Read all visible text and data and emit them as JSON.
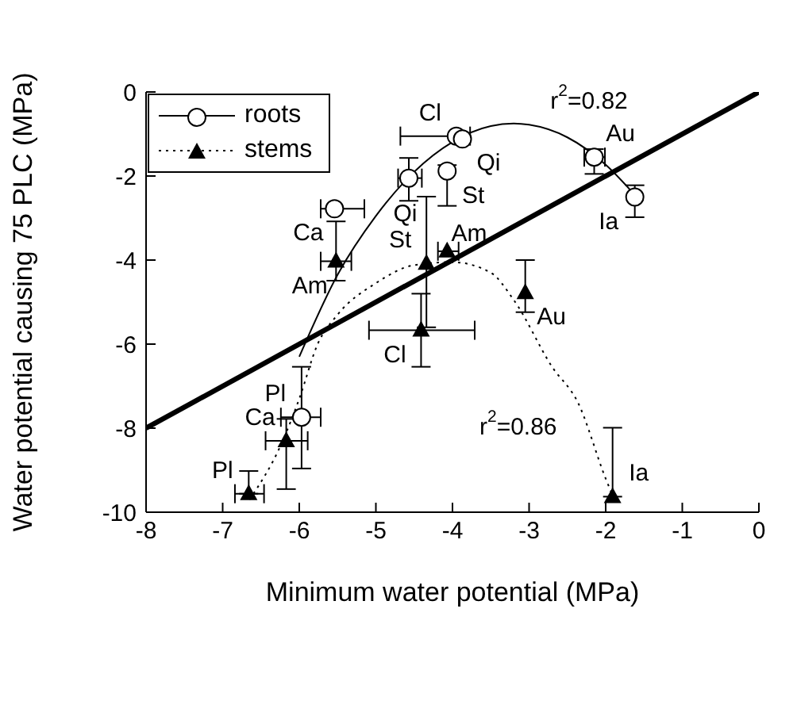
{
  "chart_data": {
    "type": "scatter",
    "xlabel": "Minimum water potential (MPa)",
    "ylabel": "Water potential causing 75 PLC (MPa)",
    "xlim": [
      -8,
      0
    ],
    "xticks": [
      -8,
      -7,
      -6,
      -5,
      -4,
      -3,
      -2,
      -1,
      0
    ],
    "ylim": [
      -10,
      0
    ],
    "yticks": [
      -10,
      -8,
      -6,
      -4,
      -2,
      0
    ],
    "grid": false,
    "legend": "top left",
    "series": [
      {
        "name": "roots",
        "color": "#000000",
        "marker": "circle",
        "line_style": "solid",
        "x": [
          -5.54,
          -4.57,
          -3.95,
          -3.87,
          -4.07,
          -2.15,
          -1.62,
          -5.97
        ],
        "values": [
          -2.78,
          -2.05,
          -1.05,
          -1.12,
          -1.88,
          -1.55,
          -2.5,
          -7.74
        ],
        "errors": [
          null,
          [
            -2.59,
            -1.57
          ],
          null,
          null,
          [
            -2.71,
            -1.74
          ],
          [
            -1.95,
            -1.36
          ],
          [
            -2.98,
            -2.22
          ],
          [
            -8.96,
            -6.54
          ]
        ],
        "xerrors": [
          [
            -5.72,
            -5.15
          ],
          [
            -4.71,
            -4.4
          ],
          [
            -4.68,
            -3.77
          ],
          null,
          null,
          [
            -2.28,
            -2.01
          ],
          null,
          [
            -6.24,
            -5.72
          ]
        ]
      },
      {
        "name": "stems",
        "color": "#000000",
        "marker": "triangle",
        "line_style": "dotted",
        "x": [
          -5.52,
          -4.34,
          -4.07,
          -3.05,
          -4.41,
          -6.17,
          -6.66,
          -1.91
        ],
        "values": [
          -4.03,
          -4.08,
          -3.79,
          -4.78,
          -5.67,
          -8.3,
          -9.56,
          -9.63
        ],
        "errors": [
          [
            -4.49,
            -3.08
          ],
          [
            -5.6,
            -2.49
          ],
          null,
          [
            -5.24,
            -4.0
          ],
          [
            -6.54,
            -4.8
          ],
          [
            -9.45,
            -7.78
          ],
          [
            -9.56,
            -9.02
          ],
          [
            -9.63,
            -7.99
          ]
        ],
        "xerrors": [
          [
            -5.72,
            -5.32
          ],
          null,
          [
            -4.19,
            -3.92
          ],
          null,
          [
            -5.09,
            -3.71
          ],
          [
            -6.44,
            -5.89
          ],
          [
            -6.84,
            -6.46
          ],
          null
        ]
      },
      {
        "type": "line",
        "color": "#000000",
        "line_style": "solid",
        "marker": "none",
        "x": [
          -6,
          -5.5,
          -5,
          -4.5,
          -4,
          -3.5,
          -3.2,
          -3,
          -2.5,
          -2,
          -1.6
        ],
        "values": [
          -6.3,
          -4.35,
          -2.95,
          -1.9,
          -1.19,
          -0.81,
          -0.75,
          -0.78,
          -1.08,
          -1.73,
          -2.49
        ]
      },
      {
        "type": "line",
        "color": "#000000",
        "line_style": "dotted",
        "marker": "none",
        "x": [
          -6.65,
          -6.24,
          -6,
          -5.76,
          -5.5,
          -5,
          -4.5,
          -4,
          -3.5,
          -3.2,
          -2.7,
          -2.36,
          -2,
          -1.91
        ],
        "values": [
          -9.7,
          -8.4,
          -7.3,
          -6,
          -5.3,
          -4.55,
          -4.12,
          -4.05,
          -4.3,
          -4.95,
          -6.54,
          -7.4,
          -9.2,
          -9.6
        ]
      },
      {
        "type": "line",
        "color": "#000000",
        "line_style": "solid",
        "marker": "none",
        "x": [
          -8,
          0
        ],
        "values": [
          -8,
          0
        ]
      }
    ],
    "annotations": [
      {
        "text": "Ca",
        "x": -5.54,
        "y": -2.78
      },
      {
        "text": "Am",
        "x": -4.57,
        "y": -2.05
      },
      {
        "text": "Cl",
        "x": -3.95,
        "y": -1.05
      },
      {
        "text": "Qi",
        "x": -3.87,
        "y": -1.12
      },
      {
        "text": "St",
        "x": -4.07,
        "y": -1.88
      },
      {
        "text": "Au",
        "x": -2.15,
        "y": -1.55
      },
      {
        "text": "Ia",
        "x": -1.62,
        "y": -2.5
      },
      {
        "text": "Pl",
        "x": -5.97,
        "y": -7.74
      },
      {
        "text": "r$^{2}$=0.82",
        "x": -3,
        "y": -0.78
      },
      {
        "text": "Am",
        "x": -5.52,
        "y": -4.03
      },
      {
        "text": "St",
        "x": -4.34,
        "y": -4.08
      },
      {
        "text": "Qi",
        "x": -4.07,
        "y": -3.79
      },
      {
        "text": "Au",
        "x": -3.05,
        "y": -4.78
      },
      {
        "text": "Cl",
        "x": -4.41,
        "y": -5.67
      },
      {
        "text": "Ca",
        "x": -6.17,
        "y": -8.3
      },
      {
        "text": "Pl",
        "x": -6.66,
        "y": -9.56
      },
      {
        "text": "Ia",
        "x": -1.91,
        "y": -9.63
      },
      {
        "text": "r$^{2}$=0.86",
        "x": -2.36,
        "y": -7.4
      }
    ]
  }
}
